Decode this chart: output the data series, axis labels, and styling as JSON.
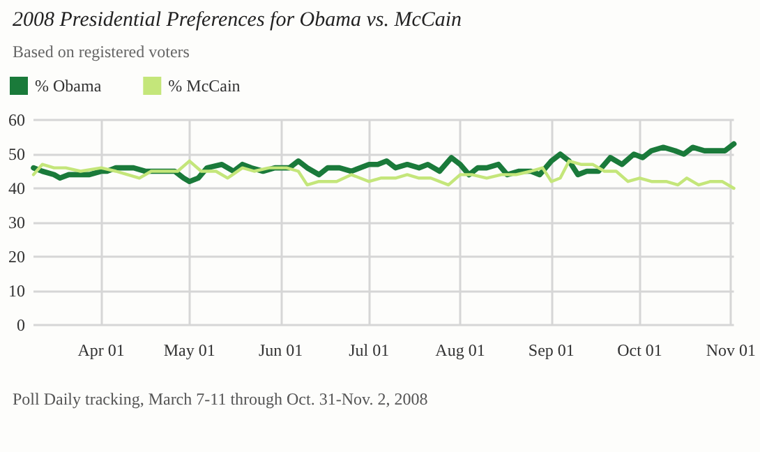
{
  "chart_data": {
    "type": "line",
    "title": "2008 Presidential Preferences for Obama vs. McCain",
    "subtitle": "Based on registered voters",
    "annotations": [
      "Poll Daily tracking, March 7-11 through Oct. 31-Nov. 2, 2008"
    ],
    "series": [
      {
        "name": "% Obama",
        "color": "#1a7a3a",
        "x": [
          "2008-03-09",
          "2008-03-12",
          "2008-03-16",
          "2008-03-18",
          "2008-03-21",
          "2008-03-28",
          "2008-04-01",
          "2008-04-03",
          "2008-04-06",
          "2008-04-12",
          "2008-04-16",
          "2008-04-20",
          "2008-04-26",
          "2008-04-29",
          "2008-05-01",
          "2008-05-04",
          "2008-05-07",
          "2008-05-12",
          "2008-05-16",
          "2008-05-19",
          "2008-05-22",
          "2008-05-26",
          "2008-05-30",
          "2008-06-04",
          "2008-06-07",
          "2008-06-10",
          "2008-06-14",
          "2008-06-17",
          "2008-06-21",
          "2008-06-25",
          "2008-07-01",
          "2008-07-04",
          "2008-07-07",
          "2008-07-10",
          "2008-07-14",
          "2008-07-18",
          "2008-07-21",
          "2008-07-25",
          "2008-07-29",
          "2008-08-01",
          "2008-08-04",
          "2008-08-07",
          "2008-08-10",
          "2008-08-14",
          "2008-08-17",
          "2008-08-21",
          "2008-08-25",
          "2008-08-28",
          "2008-09-01",
          "2008-09-04",
          "2008-09-07",
          "2008-09-10",
          "2008-09-13",
          "2008-09-17",
          "2008-09-21",
          "2008-09-25",
          "2008-09-29",
          "2008-10-02",
          "2008-10-05",
          "2008-10-09",
          "2008-10-13",
          "2008-10-16",
          "2008-10-19",
          "2008-10-23",
          "2008-10-27",
          "2008-10-30",
          "2008-11-02"
        ],
        "values": [
          46,
          45,
          44,
          43,
          44,
          44,
          45,
          45,
          46,
          46,
          45,
          45,
          45,
          43,
          42,
          43,
          46,
          47,
          45,
          47,
          46,
          45,
          46,
          46,
          48,
          46,
          44,
          46,
          46,
          45,
          47,
          47,
          48,
          46,
          47,
          46,
          47,
          45,
          49,
          47,
          44,
          46,
          46,
          47,
          44,
          45,
          45,
          44,
          48,
          50,
          48,
          44,
          45,
          45,
          49,
          47,
          50,
          49,
          51,
          52,
          51,
          50,
          52,
          51,
          51,
          51,
          53
        ]
      },
      {
        "name": "% McCain",
        "color": "#c4e67a",
        "x": [
          "2008-03-09",
          "2008-03-12",
          "2008-03-16",
          "2008-03-20",
          "2008-03-25",
          "2008-04-01",
          "2008-04-06",
          "2008-04-10",
          "2008-04-14",
          "2008-04-18",
          "2008-04-22",
          "2008-04-27",
          "2008-05-01",
          "2008-05-05",
          "2008-05-10",
          "2008-05-14",
          "2008-05-19",
          "2008-05-23",
          "2008-05-28",
          "2008-06-03",
          "2008-06-07",
          "2008-06-10",
          "2008-06-14",
          "2008-06-20",
          "2008-06-25",
          "2008-07-01",
          "2008-07-05",
          "2008-07-10",
          "2008-07-14",
          "2008-07-18",
          "2008-07-22",
          "2008-07-28",
          "2008-08-01",
          "2008-08-05",
          "2008-08-10",
          "2008-08-15",
          "2008-08-20",
          "2008-08-25",
          "2008-08-29",
          "2008-09-01",
          "2008-09-04",
          "2008-09-07",
          "2008-09-11",
          "2008-09-15",
          "2008-09-19",
          "2008-09-23",
          "2008-09-27",
          "2008-10-01",
          "2008-10-05",
          "2008-10-10",
          "2008-10-14",
          "2008-10-17",
          "2008-10-21",
          "2008-10-25",
          "2008-10-29",
          "2008-11-02"
        ],
        "values": [
          44,
          47,
          46,
          46,
          45,
          46,
          45,
          44,
          43,
          45,
          45,
          45,
          48,
          45,
          45,
          43,
          46,
          45,
          46,
          46,
          45,
          41,
          42,
          42,
          44,
          42,
          43,
          43,
          44,
          43,
          43,
          41,
          44,
          44,
          43,
          44,
          44,
          45,
          46,
          42,
          43,
          48,
          47,
          47,
          45,
          45,
          42,
          43,
          42,
          42,
          41,
          43,
          41,
          42,
          42,
          40
        ]
      }
    ],
    "xlim": [
      "2008-03-09",
      "2008-11-02"
    ],
    "xticks": [
      {
        "value": "2008-04-01",
        "label": "Apr 01"
      },
      {
        "value": "2008-05-01",
        "label": "May 01"
      },
      {
        "value": "2008-06-01",
        "label": "Jun 01"
      },
      {
        "value": "2008-07-01",
        "label": "Jul 01"
      },
      {
        "value": "2008-08-01",
        "label": "Aug 01"
      },
      {
        "value": "2008-09-01",
        "label": "Sep 01"
      },
      {
        "value": "2008-10-01",
        "label": "Oct 01"
      },
      {
        "value": "2008-11-01",
        "label": "Nov 01"
      }
    ],
    "ylim": [
      0,
      60
    ],
    "yticks": [
      0,
      10,
      20,
      30,
      40,
      50,
      60
    ],
    "grid": true,
    "legend": "top left",
    "marker": "none",
    "line_style": "solid"
  }
}
